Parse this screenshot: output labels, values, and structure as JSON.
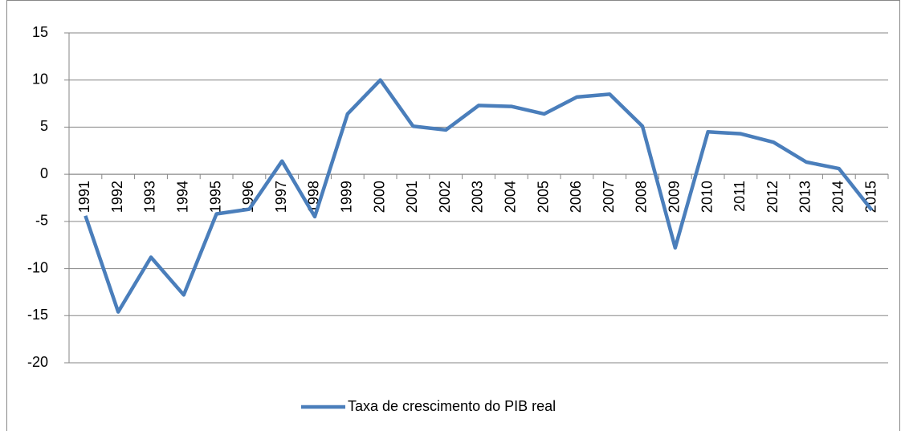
{
  "chart_data": {
    "type": "line",
    "categories": [
      "1991",
      "1992",
      "1993",
      "1994",
      "1995",
      "1996",
      "1997",
      "1998",
      "1999",
      "2000",
      "2001",
      "2002",
      "2003",
      "2004",
      "2005",
      "2006",
      "2007",
      "2008",
      "2009",
      "2010",
      "2011",
      "2012",
      "2013",
      "2014",
      "2015"
    ],
    "series": [
      {
        "name": "Taxa de crescimento do PIB real",
        "color": "#4a7ebb",
        "values": [
          -4.4,
          -14.6,
          -8.8,
          -12.8,
          -4.2,
          -3.7,
          1.4,
          -4.5,
          6.4,
          10.0,
          5.1,
          4.7,
          7.3,
          7.2,
          6.4,
          8.2,
          8.5,
          5.1,
          -7.8,
          4.5,
          4.3,
          3.4,
          1.3,
          0.6,
          -3.8
        ]
      }
    ],
    "ylim": [
      -20,
      15
    ],
    "yticks": [
      -20,
      -15,
      -10,
      -5,
      0,
      5,
      10,
      15
    ],
    "grid": true,
    "legend": "bottom"
  }
}
